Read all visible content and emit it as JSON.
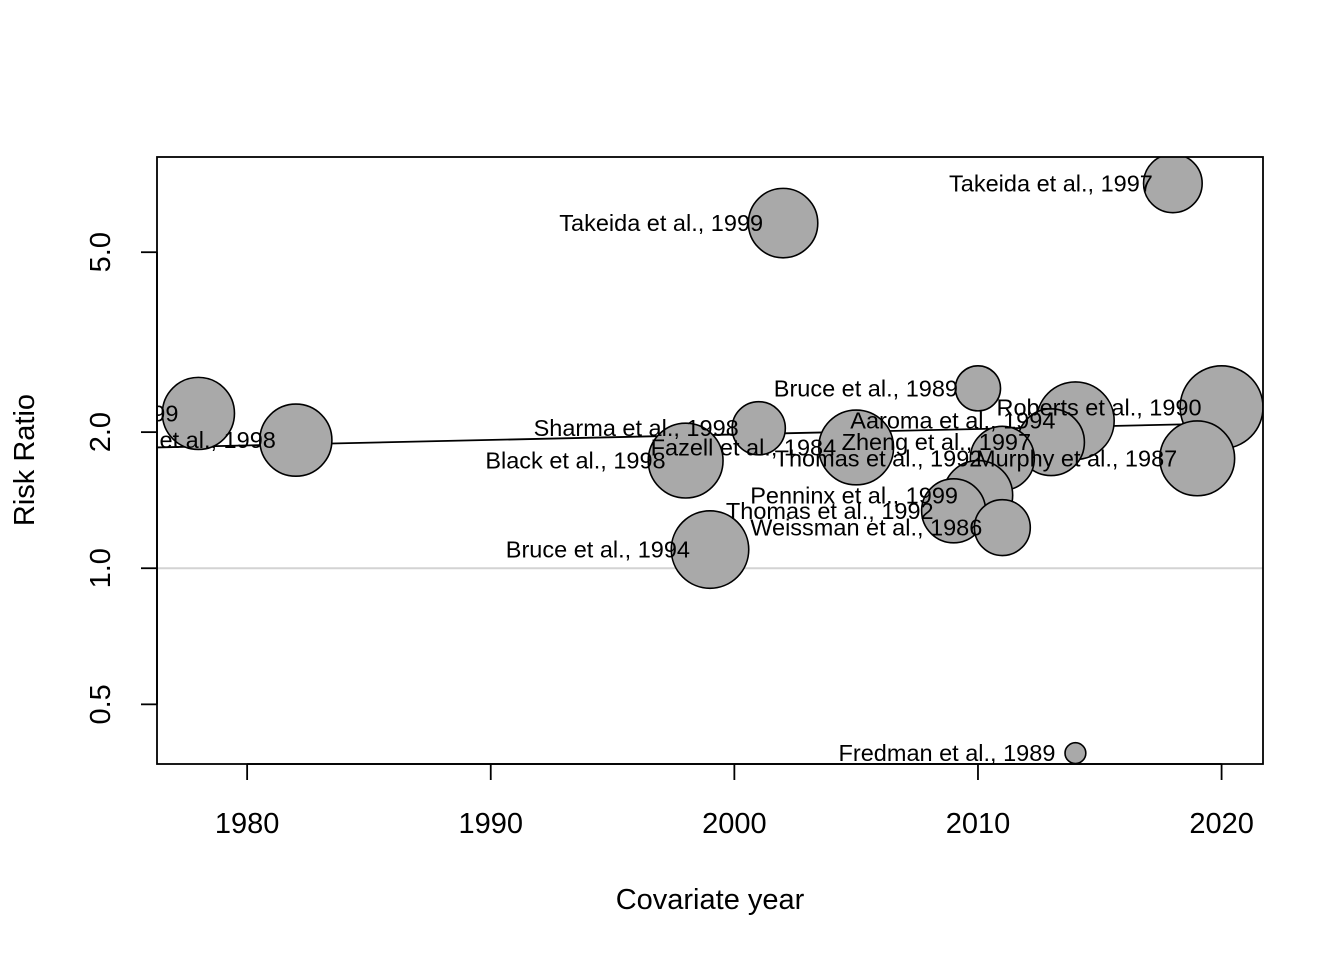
{
  "chart_data": {
    "type": "scatter",
    "title": "",
    "xlabel": "Covariate year",
    "ylabel": "Risk Ratio",
    "y_scale": "log",
    "xlim": [
      1976.3,
      2021.7
    ],
    "ylim": [
      0.369,
      8.12
    ],
    "x_ticks": [
      1980,
      1990,
      2000,
      2010,
      2020
    ],
    "x_tick_labels": [
      "1980",
      "1990",
      "2000",
      "2010",
      "2020"
    ],
    "y_ticks": [
      0.5,
      1.0,
      2.0,
      5.0
    ],
    "y_tick_labels": [
      "0.5",
      "1.0",
      "2.0",
      "5.0"
    ],
    "reference_line_y": 1.0,
    "regression_line": {
      "x": [
        1976.3,
        2020
      ],
      "y": [
        1.85,
        2.09
      ]
    },
    "points": [
      {
        "label": "Takeida et al., 1997",
        "x": 2018,
        "y": 7.1,
        "size": 0.9
      },
      {
        "label": "Takeida et al., 1999",
        "x": 2002,
        "y": 5.8,
        "size": 1.1
      },
      {
        "label": "Bruce et al., 1989",
        "x": 2010,
        "y": 2.5,
        "size": 0.65
      },
      {
        "label": "Roberts et al., 1990",
        "x": 2020,
        "y": 2.27,
        "size": 1.35
      },
      {
        "label": "…99",
        "x": 1978,
        "y": 2.2,
        "size": 1.15
      },
      {
        "label": "Aaroma et al., 1994",
        "x": 2014,
        "y": 2.12,
        "size": 1.25
      },
      {
        "label": "Sharma et al., 1998",
        "x": 2001,
        "y": 2.04,
        "size": 0.8
      },
      {
        "label": "…et al., 1998",
        "x": 1982,
        "y": 1.92,
        "size": 1.15
      },
      {
        "label": "Zheng et al., 1997",
        "x": 2013,
        "y": 1.9,
        "size": 1.05
      },
      {
        "label": "Fazell et al., 1984",
        "x": 2005,
        "y": 1.85,
        "size": 1.2
      },
      {
        "label": "Thomas et al., 1992",
        "x": 2011,
        "y": 1.75,
        "size": 1.0
      },
      {
        "label": "Black et al., 1998",
        "x": 1998,
        "y": 1.73,
        "size": 1.2
      },
      {
        "label": "Murphy et al., 1987",
        "x": 2019,
        "y": 1.75,
        "size": 1.2
      },
      {
        "label": "Penninx et al., 1999",
        "x": 2010,
        "y": 1.45,
        "size": 1.1
      },
      {
        "label": "Thomas et al., 1992",
        "x": 2009,
        "y": 1.34,
        "size": 1.0
      },
      {
        "label": "Weissman et al., 1986",
        "x": 2011,
        "y": 1.23,
        "size": 0.85
      },
      {
        "label": "Bruce et al., 1994",
        "x": 1999,
        "y": 1.1,
        "size": 1.25
      },
      {
        "label": "Fredman et al., 1989",
        "x": 2014,
        "y": 0.39,
        "size": 0.2
      }
    ]
  }
}
